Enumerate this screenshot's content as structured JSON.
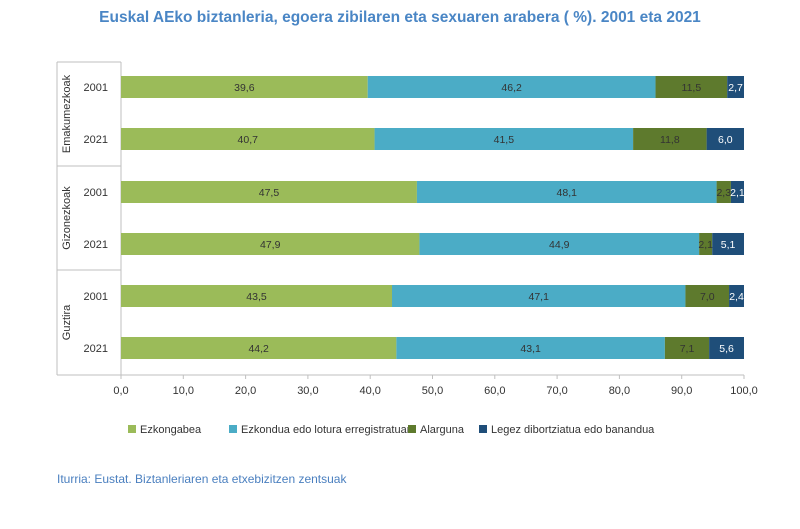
{
  "chart_data": {
    "type": "bar",
    "orientation": "horizontal-stacked",
    "title": "Euskal AEko biztanleria, egoera zibilaren eta sexuaren arabera ( %). 2001 eta 2021",
    "groups": [
      {
        "name": "Emakumezkoak",
        "rows": [
          "2001",
          "2021"
        ]
      },
      {
        "name": "Gizonezkoak",
        "rows": [
          "2001",
          "2021"
        ]
      },
      {
        "name": "Guztira",
        "rows": [
          "2001",
          "2021"
        ]
      }
    ],
    "series": [
      {
        "name": "Ezkongabea",
        "color": "#9bbb59",
        "values": [
          39.6,
          40.7,
          47.5,
          47.9,
          43.5,
          44.2
        ],
        "labels": [
          "39,6",
          "40,7",
          "47,5",
          "47,9",
          "43,5",
          "44,2"
        ]
      },
      {
        "name": "Ezkondua edo lotura erregistratuan",
        "color": "#4bacc6",
        "values": [
          46.2,
          41.5,
          48.1,
          44.9,
          47.1,
          43.1
        ],
        "labels": [
          "46,2",
          "41,5",
          "48,1",
          "44,9",
          "47,1",
          "43,1"
        ]
      },
      {
        "name": "Alarguna",
        "color": "#5e7a2d",
        "values": [
          11.5,
          11.8,
          2.3,
          2.1,
          7.0,
          7.1
        ],
        "labels": [
          "11,5",
          "11,8",
          "2,3",
          "2,1",
          "7,0",
          "7,1"
        ]
      },
      {
        "name": "Legez dibortziatua edo banandua",
        "color": "#1f4e79",
        "values": [
          2.7,
          6.0,
          2.1,
          5.1,
          2.4,
          5.6
        ],
        "labels": [
          "2,7",
          "6,0",
          "2,1",
          "5,1",
          "2,4",
          "5,6"
        ]
      }
    ],
    "xlim": [
      0,
      100
    ],
    "xticks": [
      "0,0",
      "10,0",
      "20,0",
      "30,0",
      "40,0",
      "50,0",
      "60,0",
      "70,0",
      "80,0",
      "90,0",
      "100,0"
    ],
    "legend_position": "bottom",
    "grid": false
  },
  "source": "Iturria: Eustat. Biztanleriaren eta etxebizitzen zentsuak"
}
